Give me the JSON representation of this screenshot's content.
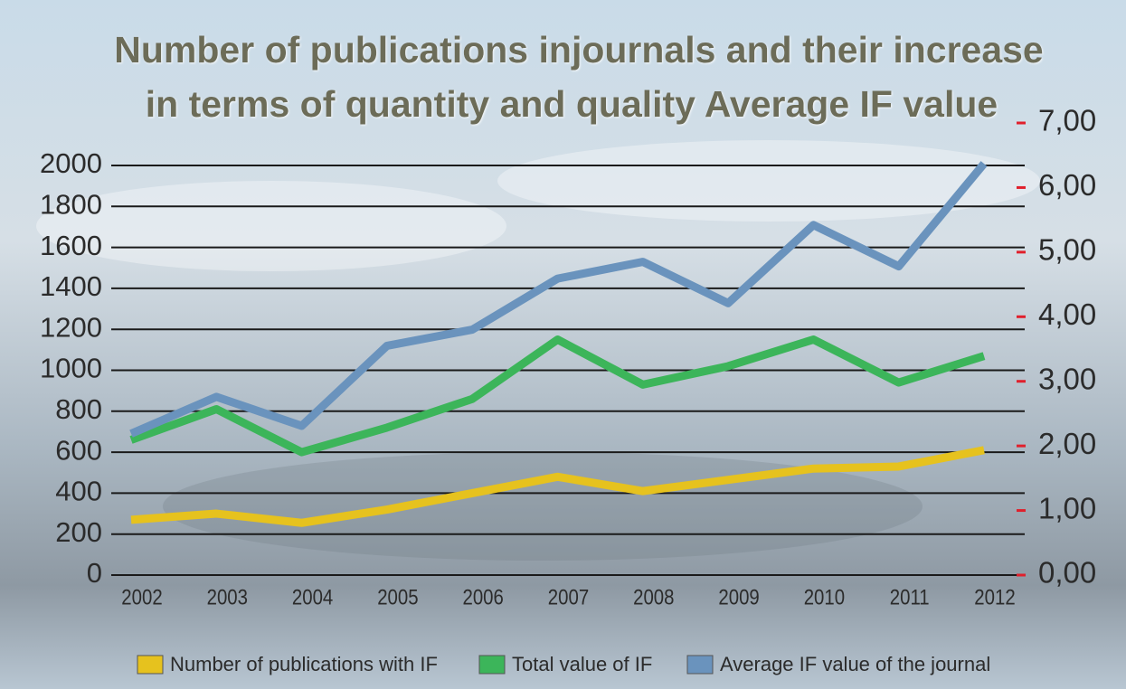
{
  "chart_data": {
    "type": "line",
    "title": [
      "Number of publications injournals and their increase",
      "in terms of quantity and quality Average IF value"
    ],
    "categories": [
      "2002",
      "2003",
      "2004",
      "2005",
      "2006",
      "2007",
      "2008",
      "2009",
      "2010",
      "2011",
      "2012"
    ],
    "series": [
      {
        "name": "Number of publications with IF",
        "color": "#e6c21e",
        "values": [
          270,
          300,
          255,
          320,
          400,
          480,
          410,
          465,
          520,
          530,
          610
        ]
      },
      {
        "name": "Total value of IF",
        "color": "#3cb55a",
        "values": [
          660,
          810,
          600,
          720,
          860,
          1150,
          930,
          1020,
          1150,
          940,
          1070
        ]
      },
      {
        "name": "Average IF value of the journal",
        "color": "#6a93bd",
        "axis": "y2",
        "values": [
          2.19,
          2.76,
          2.31,
          3.55,
          3.8,
          4.59,
          4.85,
          4.21,
          5.42,
          4.78,
          6.37
        ]
      }
    ],
    "ylim": [
      0,
      2000
    ],
    "yticks": [
      0,
      200,
      400,
      600,
      800,
      1000,
      1200,
      1400,
      1600,
      1800,
      2000
    ],
    "y2lim": [
      0,
      7
    ],
    "y2ticks": [
      {
        "value": 0,
        "label": "0,00"
      },
      {
        "value": 1,
        "label": "1,00"
      },
      {
        "value": 2,
        "label": "2,00"
      },
      {
        "value": 3,
        "label": "3,00"
      },
      {
        "value": 4,
        "label": "4,00"
      },
      {
        "value": 5,
        "label": "5,00"
      },
      {
        "value": 6,
        "label": "6,00"
      },
      {
        "value": 7,
        "label": "7,00"
      }
    ],
    "grid": true
  }
}
